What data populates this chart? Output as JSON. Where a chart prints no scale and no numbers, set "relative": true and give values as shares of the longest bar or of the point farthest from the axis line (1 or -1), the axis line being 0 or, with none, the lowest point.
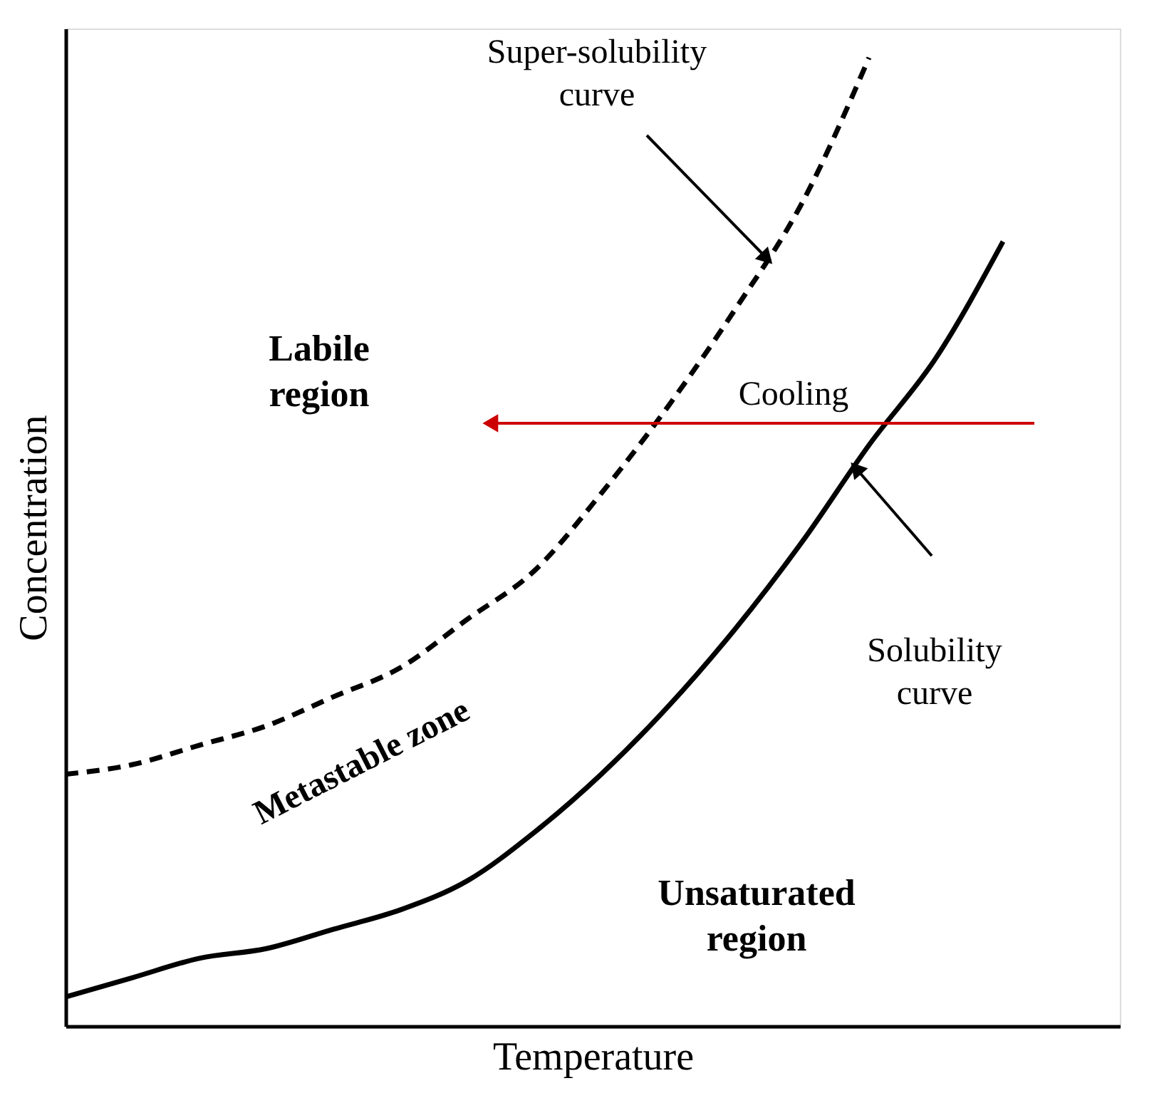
{
  "chart_data": {
    "type": "line",
    "relative": true,
    "xlabel": "Temperature",
    "ylabel": "Concentration",
    "grid": false,
    "marker": "none",
    "categories": [
      null,
      null,
      null,
      null,
      null,
      null,
      null,
      null,
      null,
      null,
      null,
      null,
      null,
      null,
      null
    ],
    "series": [
      {
        "color": "#000000",
        "line_style": "dashed",
        "values": [
          0.26,
          0.27,
          0.29,
          0.31,
          0.34,
          0.37,
          0.42,
          0.47,
          0.55,
          0.64,
          0.74,
          0.85,
          1.0,
          null,
          null
        ]
      },
      {
        "color": "#000000",
        "line_style": "solid",
        "values": [
          0.03,
          0.05,
          0.07,
          0.08,
          0.1,
          0.12,
          0.15,
          0.2,
          0.26,
          0.33,
          0.41,
          0.5,
          0.6,
          0.69,
          0.81
        ]
      }
    ],
    "annotations": [
      "Super-solubility curve",
      "Labile region",
      "Cooling",
      "Metastable zone",
      "Unsaturated region",
      "Solubility curve"
    ]
  }
}
